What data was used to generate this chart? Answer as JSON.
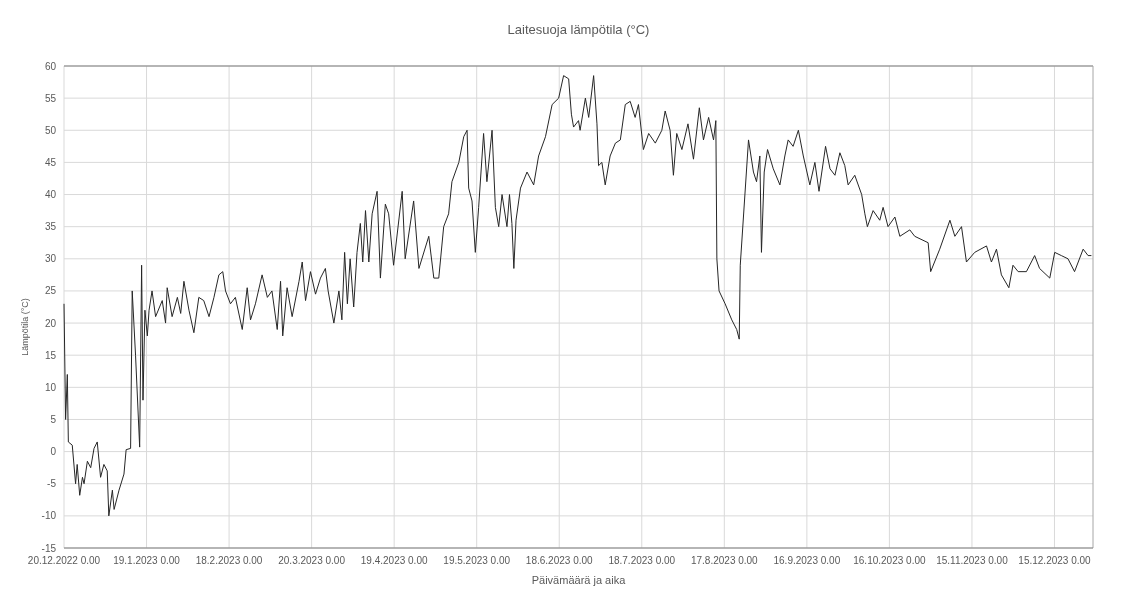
{
  "chart_data": {
    "type": "line",
    "title": "Laitesuoja lämpötila (°C)",
    "xlabel": "Päivämäärä ja aika",
    "ylabel": "Lämpötila (°C)",
    "xlim": [
      "2022-12-20",
      "2023-12-29"
    ],
    "xticks": [
      {
        "value": "2022-12-20",
        "label": "20.12.2022 0.00"
      },
      {
        "value": "2023-01-19",
        "label": "19.1.2023 0.00"
      },
      {
        "value": "2023-02-18",
        "label": "18.2.2023 0.00"
      },
      {
        "value": "2023-03-20",
        "label": "20.3.2023 0.00"
      },
      {
        "value": "2023-04-19",
        "label": "19.4.2023 0.00"
      },
      {
        "value": "2023-05-19",
        "label": "19.5.2023 0.00"
      },
      {
        "value": "2023-06-18",
        "label": "18.6.2023 0.00"
      },
      {
        "value": "2023-07-18",
        "label": "18.7.2023 0.00"
      },
      {
        "value": "2023-08-17",
        "label": "17.8.2023 0.00"
      },
      {
        "value": "2023-09-16",
        "label": "16.9.2023 0.00"
      },
      {
        "value": "2023-10-16",
        "label": "16.10.2023 0.00"
      },
      {
        "value": "2023-11-15",
        "label": "15.11.2023 0.00"
      },
      {
        "value": "2023-12-15",
        "label": "15.12.2023 0.00"
      }
    ],
    "ylim": [
      -15,
      60
    ],
    "yticks": [
      -15,
      -10,
      -5,
      0,
      5,
      10,
      15,
      20,
      25,
      30,
      35,
      40,
      45,
      50,
      55,
      60
    ],
    "grid": true,
    "line_style": "solid",
    "x": [
      "2022-12-20T00:00",
      "2022-12-20T14:00",
      "2022-12-21T05:00",
      "2022-12-21T14:00",
      "2022-12-23T00:00",
      "2022-12-24T05:00",
      "2022-12-24T19:00",
      "2022-12-25T17:00",
      "2022-12-26T17:00",
      "2022-12-27T07:00",
      "2022-12-28T12:00",
      "2022-12-29T17:00",
      "2022-12-30T22:00",
      "2023-01-01T02:00",
      "2023-01-02T07:00",
      "2023-01-03T12:00",
      "2023-01-04T17:00",
      "2023-01-05T07:00",
      "2023-01-06T14:00",
      "2023-01-07T05:00",
      "2023-01-09T00:00",
      "2023-01-10T19:00",
      "2023-01-11T14:00",
      "2023-01-13T05:00",
      "2023-01-13T19:00",
      "2023-01-15T00:00",
      "2023-01-16T12:00",
      "2023-01-17T05:00",
      "2023-01-17T17:00",
      "2023-01-18T10:00",
      "2023-01-19T07:00",
      "2023-01-19T22:00",
      "2023-01-21T00:00",
      "2023-01-22T07:00",
      "2023-01-24T17:00",
      "2023-01-25T22:00",
      "2023-01-26T12:00",
      "2023-01-28T07:00",
      "2023-01-30T05:00",
      "2023-01-31T10:00",
      "2023-02-01T14:00",
      "2023-02-03T10:00",
      "2023-02-05T05:00",
      "2023-02-07T00:00",
      "2023-02-08T19:00",
      "2023-02-10T17:00",
      "2023-02-12T12:00",
      "2023-02-14T07:00",
      "2023-02-15T17:00",
      "2023-02-16T17:00",
      "2023-02-18T12:00",
      "2023-02-20T07:00",
      "2023-02-22T19:00",
      "2023-02-24T14:00",
      "2023-02-25T19:00",
      "2023-02-27T14:00",
      "2023-03-02T00:00",
      "2023-03-03T22:00",
      "2023-03-05T14:00",
      "2023-03-07T12:00",
      "2023-03-08T17:00",
      "2023-03-09T12:00",
      "2023-03-11T02:00",
      "2023-03-12T22:00",
      "2023-03-15T10:00",
      "2023-03-16T14:00",
      "2023-03-17T19:00",
      "2023-03-19T14:00",
      "2023-03-21T10:00",
      "2023-03-23T05:00",
      "2023-03-25T00:00",
      "2023-03-26T00:00",
      "2023-03-28T02:00",
      "2023-03-29T22:00",
      "2023-03-31T00:00",
      "2023-04-01T00:00",
      "2023-04-02T00:00",
      "2023-04-03T00:00",
      "2023-04-04T07:00",
      "2023-04-05T12:00",
      "2023-04-06T17:00",
      "2023-04-07T14:00",
      "2023-04-08T14:00",
      "2023-04-09T19:00",
      "2023-04-11T00:00",
      "2023-04-12T19:00",
      "2023-04-14T00:00",
      "2023-04-15T19:00",
      "2023-04-17T00:00",
      "2023-04-18T19:00",
      "2023-04-21T22:00",
      "2023-04-23T00:00",
      "2023-04-26T02:00",
      "2023-04-28T00:00",
      "2023-05-01T14:00",
      "2023-05-03T10:00",
      "2023-05-05T05:00",
      "2023-05-07T00:00",
      "2023-05-08T19:00",
      "2023-05-10T00:00",
      "2023-05-12T12:00",
      "2023-05-14T07:00",
      "2023-05-15T12:00",
      "2023-05-16T02:00",
      "2023-05-17T07:00",
      "2023-05-18T12:00",
      "2023-05-19T17:00",
      "2023-05-21T12:00",
      "2023-05-22T17:00",
      "2023-05-24T14:00",
      "2023-05-25T19:00",
      "2023-05-27T00:00",
      "2023-05-28T05:00",
      "2023-05-30T00:00",
      "2023-05-30T22:00",
      "2023-05-31T19:00",
      "2023-06-01T12:00",
      "2023-06-02T07:00",
      "2023-06-03T22:00",
      "2023-06-06T07:00",
      "2023-06-08T17:00",
      "2023-06-10T12:00",
      "2023-06-13T00:00",
      "2023-06-15T10:00",
      "2023-06-17T19:00",
      "2023-06-19T14:00",
      "2023-06-21T10:00",
      "2023-06-22T10:00",
      "2023-06-23T05:00",
      "2023-06-25T00:00",
      "2023-06-25T14:00",
      "2023-06-27T12:00",
      "2023-06-28T17:00",
      "2023-06-30T12:00",
      "2023-07-01T17:00",
      "2023-07-02T07:00",
      "2023-07-03T12:00",
      "2023-07-04T17:00",
      "2023-07-06T12:00",
      "2023-07-08T10:00",
      "2023-07-10T05:00",
      "2023-07-12T00:00",
      "2023-07-13T19:00",
      "2023-07-15T14:00",
      "2023-07-16T19:00",
      "2023-07-18T14:00",
      "2023-07-20T12:00",
      "2023-07-22T22:00",
      "2023-07-25T07:00",
      "2023-07-26T12:00",
      "2023-07-28T07:00",
      "2023-07-29T12:00",
      "2023-07-30T17:00",
      "2023-08-01T14:00",
      "2023-08-03T19:00",
      "2023-08-05T19:00",
      "2023-08-07T22:00",
      "2023-08-09T10:00",
      "2023-08-11T07:00",
      "2023-08-13T02:00",
      "2023-08-13T22:00",
      "2023-08-14T07:00",
      "2023-08-15T02:00",
      "2023-08-17T07:00",
      "2023-08-19T17:00",
      "2023-08-21T12:00",
      "2023-08-22T10:00",
      "2023-08-22T19:00",
      "2023-08-25T19:00",
      "2023-08-27T14:00",
      "2023-08-28T17:00",
      "2023-08-29T22:00",
      "2023-08-30T12:00",
      "2023-08-31T12:00",
      "2023-09-01T17:00",
      "2023-09-03T19:00",
      "2023-09-06T05:00",
      "2023-09-08T00:00",
      "2023-09-09T05:00",
      "2023-09-11T00:00",
      "2023-09-12T22:00",
      "2023-09-14T17:00",
      "2023-09-17T02:00",
      "2023-09-18T22:00",
      "2023-09-20T10:00",
      "2023-09-22T19:00",
      "2023-09-24T10:00",
      "2023-09-26T05:00",
      "2023-09-28T00:00",
      "2023-09-29T19:00",
      "2023-10-01T00:00",
      "2023-10-03T10:00",
      "2023-10-05T22:00",
      "2023-10-07T02:00",
      "2023-10-08T00:00",
      "2023-10-10T02:00",
      "2023-10-12T12:00",
      "2023-10-13T17:00",
      "2023-10-15T12:00",
      "2023-10-18T00:00",
      "2023-10-19T19:00",
      "2023-10-23T10:00",
      "2023-10-25T05:00",
      "2023-10-30T02:00",
      "2023-10-31T00:00",
      "2023-11-03T07:00",
      "2023-11-07T00:00",
      "2023-11-08T19:00",
      "2023-11-11T05:00",
      "2023-11-13T00:00",
      "2023-11-16T00:00",
      "2023-11-20T07:00",
      "2023-11-22T02:00",
      "2023-11-23T22:00",
      "2023-11-25T17:00",
      "2023-11-28T10:00",
      "2023-11-29T22:00",
      "2023-12-01T19:00",
      "2023-12-04T19:00",
      "2023-12-07T19:00",
      "2023-12-09T14:00",
      "2023-12-13T07:00",
      "2023-12-15T02:00",
      "2023-12-17T12:00",
      "2023-12-19T22:00",
      "2023-12-22T07:00",
      "2023-12-25T10:00",
      "2023-12-27T05:00",
      "2023-12-28T10:00"
    ],
    "series": [
      {
        "color": "#262626",
        "values": [
          23,
          5,
          12,
          1.5,
          1,
          -5,
          -2,
          -6.8,
          -4,
          -5,
          -1.5,
          -2.5,
          0.5,
          1.5,
          -4,
          -2,
          -3,
          -10,
          -6,
          -9,
          -6,
          -3.5,
          0.3,
          0.5,
          25,
          15,
          0.7,
          29,
          8,
          22,
          18,
          22,
          25,
          21,
          23.5,
          20,
          25.5,
          21,
          24,
          21.5,
          26.5,
          22,
          18.5,
          24,
          23.5,
          21,
          24,
          27.5,
          28,
          25,
          23,
          24,
          19,
          25.5,
          20.5,
          23,
          27.5,
          24,
          25,
          19,
          26.5,
          18,
          25.5,
          21,
          26.5,
          29.5,
          23.5,
          28,
          24.5,
          27,
          28.5,
          25,
          20,
          25,
          20.5,
          31,
          23,
          30,
          22.5,
          31,
          35.5,
          29.5,
          37.5,
          29.5,
          37,
          40.5,
          27,
          38.5,
          37,
          29,
          40.5,
          30,
          39,
          28.5,
          33.5,
          27,
          27,
          35,
          37,
          42,
          45,
          49,
          50,
          41,
          39,
          31,
          38,
          49.5,
          42,
          50,
          38,
          35,
          40,
          35,
          40,
          35.5,
          28.5,
          36,
          41,
          43.5,
          41.5,
          46,
          49,
          54,
          55,
          58.5,
          58,
          52.5,
          50.5,
          51.5,
          50,
          55,
          52,
          58.5,
          51,
          44.5,
          45,
          41.5,
          46,
          48,
          48.5,
          54,
          54.5,
          52,
          54,
          47,
          49.5,
          48,
          50,
          53,
          50,
          43,
          49.5,
          47,
          51,
          45.5,
          53.5,
          48.5,
          52,
          48.5,
          51.5,
          30,
          25,
          23,
          20.5,
          19,
          17.5,
          29,
          48.5,
          43.5,
          42,
          46,
          31,
          43.5,
          47,
          44,
          41.5,
          46,
          48.5,
          47.5,
          50,
          46,
          41.5,
          45,
          40.5,
          47.5,
          44,
          43,
          46.5,
          44.5,
          41.5,
          43,
          40,
          37,
          35,
          37.5,
          36,
          38,
          35,
          36.5,
          33.5,
          34.5,
          33.5,
          32.5,
          28,
          31.5,
          36,
          33.5,
          35,
          29.5,
          31,
          32,
          29.5,
          31.5,
          27.5,
          25.5,
          29,
          28,
          28,
          30.5,
          28.5,
          27,
          31,
          30.5,
          30,
          28,
          31.5,
          30.5,
          30.5
        ]
      }
    ]
  }
}
